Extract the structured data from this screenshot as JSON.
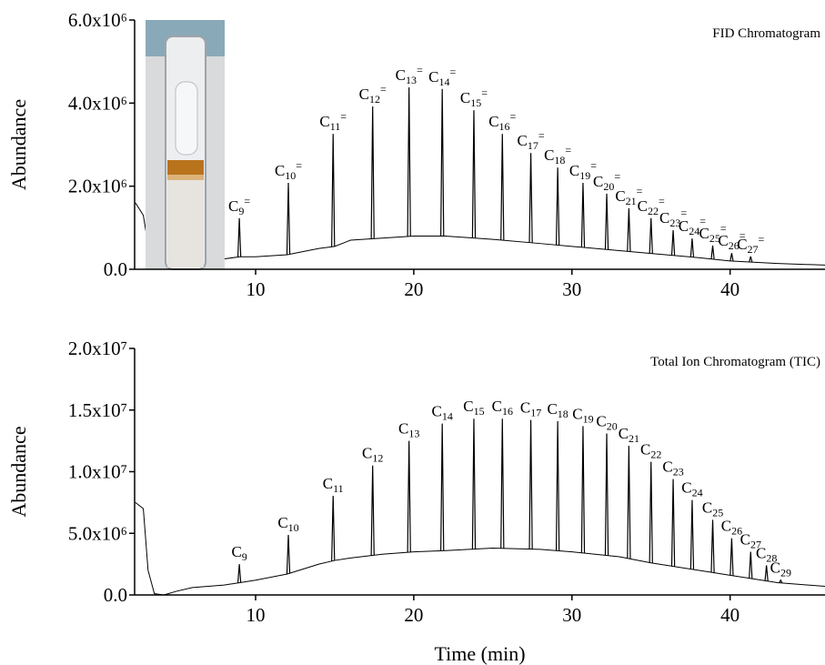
{
  "chart_data": [
    {
      "type": "line",
      "annotation": "FID Chromatogram",
      "y_label": "Abundance",
      "xlim": [
        2.35,
        46
      ],
      "xticks": [
        10,
        20,
        30,
        40
      ],
      "ylim": [
        0,
        6000000
      ],
      "yticks": [
        {
          "value": 0,
          "label": "0.0"
        },
        {
          "value": 2000000,
          "label": "2.0x10⁶"
        },
        {
          "value": 4000000,
          "label": "4.0x10⁶"
        },
        {
          "value": 6000000,
          "label": "6.0x10⁶"
        }
      ],
      "color": "#000000",
      "baseline": {
        "x": [
          2.4,
          2.9,
          3.2,
          3.6,
          4.2,
          5,
          6,
          7,
          8,
          9,
          10,
          12,
          14,
          15,
          16,
          18,
          20,
          22,
          25,
          28,
          30,
          33,
          35,
          38,
          40,
          43,
          46
        ],
        "values": [
          1600000,
          1300000,
          600000,
          200000,
          60000,
          100000,
          150000,
          200000,
          250000,
          300000,
          300000,
          350000,
          500000,
          550000,
          700000,
          750000,
          800000,
          800000,
          720000,
          620000,
          550000,
          450000,
          380000,
          280000,
          200000,
          140000,
          100000
        ]
      },
      "peaks": {
        "x": [
          8.97,
          12.07,
          14.9,
          17.4,
          19.7,
          21.8,
          23.8,
          25.6,
          27.4,
          29.1,
          30.7,
          32.2,
          33.6,
          35.0,
          36.4,
          37.6,
          38.9,
          40.1,
          41.3
        ],
        "values": [
          1230000,
          2080000,
          3260000,
          3920000,
          4380000,
          4340000,
          3830000,
          3260000,
          2800000,
          2450000,
          2080000,
          1820000,
          1470000,
          1230000,
          940000,
          740000,
          570000,
          390000,
          310000
        ],
        "labels": [
          {
            "text": "C",
            "sub": "9",
            "sup": "="
          },
          {
            "text": "C",
            "sub": "10",
            "sup": "="
          },
          {
            "text": "C",
            "sub": "11",
            "sup": "="
          },
          {
            "text": "C",
            "sub": "12",
            "sup": "="
          },
          {
            "text": "C",
            "sub": "13",
            "sup": "="
          },
          {
            "text": "C",
            "sub": "14",
            "sup": "="
          },
          {
            "text": "C",
            "sub": "15",
            "sup": "="
          },
          {
            "text": "C",
            "sub": "16",
            "sup": "="
          },
          {
            "text": "C",
            "sub": "17",
            "sup": "="
          },
          {
            "text": "C",
            "sub": "18",
            "sup": "="
          },
          {
            "text": "C",
            "sub": "19",
            "sup": "="
          },
          {
            "text": "C",
            "sub": "20",
            "sup": "="
          },
          {
            "text": "C",
            "sub": "21",
            "sup": "="
          },
          {
            "text": "C",
            "sub": "22",
            "sup": "="
          },
          {
            "text": "C",
            "sub": "23",
            "sup": "="
          },
          {
            "text": "C",
            "sub": "24",
            "sup": "="
          },
          {
            "text": "C",
            "sub": "25",
            "sup": "="
          },
          {
            "text": "C",
            "sub": "26",
            "sup": "="
          },
          {
            "text": "C",
            "sub": "27",
            "sup": "="
          }
        ]
      }
    },
    {
      "type": "line",
      "annotation": "Total Ion Chromatogram (TIC)",
      "y_label": "Abundance",
      "x_label": "Time (min)",
      "xlim": [
        2.35,
        46
      ],
      "xticks": [
        10,
        20,
        30,
        40
      ],
      "ylim": [
        0,
        20000000
      ],
      "yticks": [
        {
          "value": 0,
          "label": "0.0"
        },
        {
          "value": 5000000,
          "label": "5.0x10⁶"
        },
        {
          "value": 10000000,
          "label": "1.0x10⁷"
        },
        {
          "value": 15000000,
          "label": "1.5x10⁷"
        },
        {
          "value": 20000000,
          "label": "2.0x10⁷"
        }
      ],
      "color": "#000000",
      "baseline": {
        "x": [
          2.4,
          2.9,
          3.2,
          3.6,
          4.2,
          5,
          6,
          7,
          8,
          9,
          10,
          12,
          14,
          15,
          16,
          18,
          20,
          22,
          25,
          28,
          30,
          33,
          35,
          38,
          40,
          43,
          46
        ],
        "values": [
          7500000,
          7000000,
          2000000,
          100000,
          0,
          300000,
          600000,
          700000,
          800000,
          1000000,
          1200000,
          1700000,
          2500000,
          2800000,
          3000000,
          3300000,
          3500000,
          3600000,
          3800000,
          3700000,
          3500000,
          3100000,
          2600000,
          2000000,
          1600000,
          1000000,
          700000
        ]
      },
      "peaks": {
        "x": [
          8.97,
          12.07,
          14.9,
          17.4,
          19.7,
          21.8,
          23.8,
          25.6,
          27.4,
          29.1,
          30.7,
          32.2,
          33.6,
          35.0,
          36.4,
          37.6,
          38.9,
          40.1,
          41.3,
          42.3,
          43.2
        ],
        "values": [
          2500000,
          4870000,
          8040000,
          10500000,
          12500000,
          13900000,
          14300000,
          14300000,
          14200000,
          14100000,
          13700000,
          13100000,
          12100000,
          10800000,
          9400000,
          7700000,
          6100000,
          4600000,
          3500000,
          2400000,
          1200000
        ],
        "labels": [
          {
            "text": "C",
            "sub": "9"
          },
          {
            "text": "C",
            "sub": "10"
          },
          {
            "text": "C",
            "sub": "11"
          },
          {
            "text": "C",
            "sub": "12"
          },
          {
            "text": "C",
            "sub": "13"
          },
          {
            "text": "C",
            "sub": "14"
          },
          {
            "text": "C",
            "sub": "15"
          },
          {
            "text": "C",
            "sub": "16"
          },
          {
            "text": "C",
            "sub": "17"
          },
          {
            "text": "C",
            "sub": "18"
          },
          {
            "text": "C",
            "sub": "19"
          },
          {
            "text": "C",
            "sub": "20"
          },
          {
            "text": "C",
            "sub": "21"
          },
          {
            "text": "C",
            "sub": "22"
          },
          {
            "text": "C",
            "sub": "23"
          },
          {
            "text": "C",
            "sub": "24"
          },
          {
            "text": "C",
            "sub": "25"
          },
          {
            "text": "C",
            "sub": "26"
          },
          {
            "text": "C",
            "sub": "27"
          },
          {
            "text": "C",
            "sub": "28"
          },
          {
            "text": "C",
            "sub": "29"
          }
        ]
      }
    }
  ]
}
